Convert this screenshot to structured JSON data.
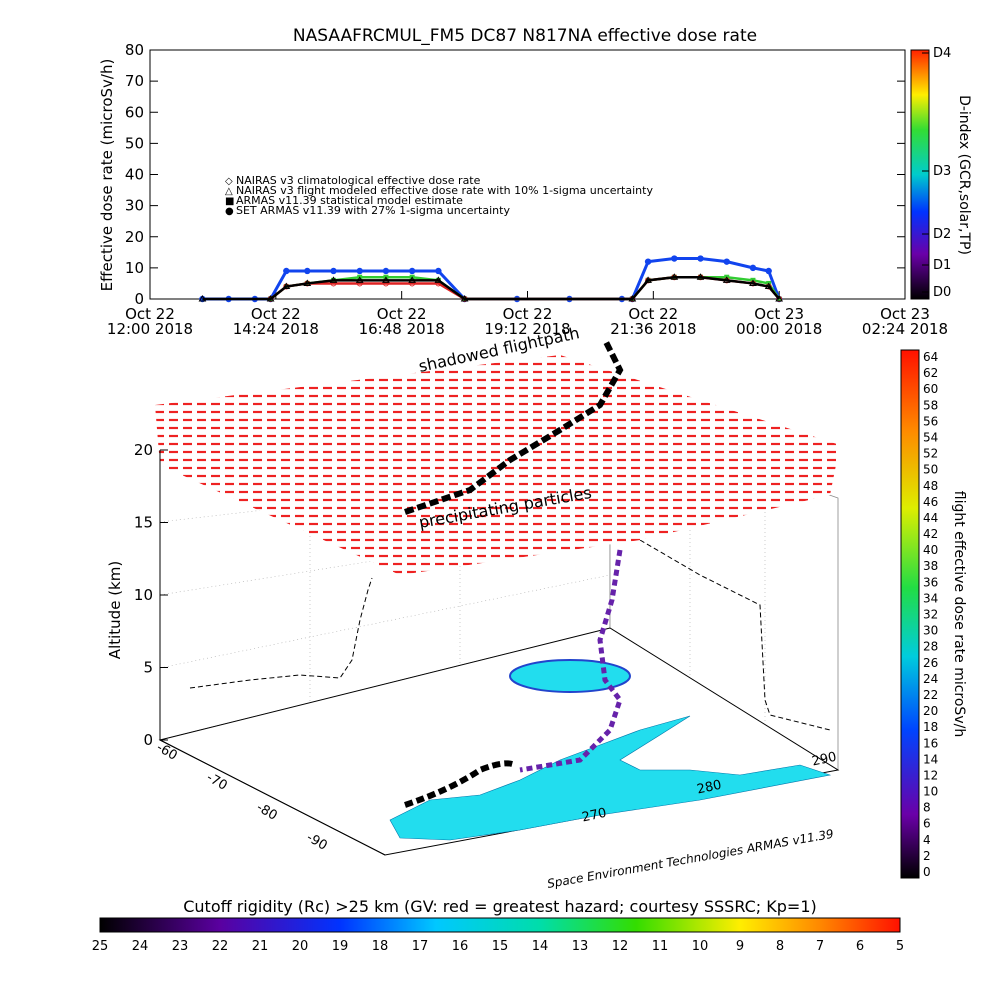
{
  "top_chart": {
    "title": "NASAAFRCMUL_FM5 DC87 N817NA effective dose rate",
    "ylabel": "Effective dose rate (microSv/h)",
    "yticks": [
      "0",
      "10",
      "20",
      "30",
      "40",
      "50",
      "60",
      "70",
      "80"
    ],
    "xticks": [
      {
        "l1": "Oct 22",
        "l2": "12:00 2018"
      },
      {
        "l1": "Oct 22",
        "l2": "14:24 2018"
      },
      {
        "l1": "Oct 22",
        "l2": "16:48 2018"
      },
      {
        "l1": "Oct 22",
        "l2": "19:12 2018"
      },
      {
        "l1": "Oct 22",
        "l2": "21:36 2018"
      },
      {
        "l1": "Oct 23",
        "l2": "00:00 2018"
      },
      {
        "l1": "Oct 23",
        "l2": "02:24 2018"
      }
    ],
    "legend": [
      {
        "symbol": "◇",
        "color": "#dd2222",
        "label": "NAIRAS v3 climatological effective dose rate"
      },
      {
        "symbol": "△",
        "color": "#000000",
        "label": "NAIRAS v3 flight modeled effective dose rate with 10% 1-sigma uncertainty"
      },
      {
        "symbol": "■",
        "color": "#33cc33",
        "label": "ARMAS v11.39 statistical model estimate"
      },
      {
        "symbol": "●",
        "color": "#1144ee",
        "label": "SET ARMAS v11.39 with 27% 1-sigma uncertainty"
      }
    ],
    "dindex": {
      "title": "D-index (GCR,solar,TP)",
      "labels": [
        "D4",
        "D3",
        "D2",
        "D1",
        "D0"
      ]
    }
  },
  "chart_data": [
    {
      "type": "line",
      "title": "NASAAFRCMUL_FM5 DC87 N817NA effective dose rate",
      "xlabel": "",
      "ylabel": "Effective dose rate (microSv/h)",
      "ylim": [
        0,
        80
      ],
      "x_unit": "hours since Oct 22 12:00 2018",
      "xlim": [
        0,
        14.4
      ],
      "series": [
        {
          "name": "SET ARMAS v11.39 with 27% 1-sigma uncertainty",
          "color": "#1144ee",
          "x": [
            1.0,
            1.5,
            2.0,
            2.3,
            2.6,
            3.0,
            3.5,
            4.0,
            4.5,
            5.0,
            5.5,
            6.0,
            7.0,
            8.0,
            9.0,
            9.2,
            9.5,
            10.0,
            10.5,
            11.0,
            11.5,
            11.8,
            12.0
          ],
          "y": [
            0,
            0,
            0,
            0,
            9,
            9,
            9,
            9,
            9,
            9,
            9,
            0,
            0,
            0,
            0,
            0,
            12,
            13,
            13,
            12,
            10,
            9,
            0
          ]
        },
        {
          "name": "ARMAS v11.39 statistical model estimate",
          "color": "#33cc33",
          "x": [
            2.3,
            2.6,
            3.0,
            3.5,
            4.0,
            4.5,
            5.0,
            5.5,
            6.0,
            9.2,
            9.5,
            10.0,
            10.5,
            11.0,
            11.5,
            11.8,
            12.0
          ],
          "y": [
            0,
            4,
            5,
            6,
            7,
            7,
            7,
            6,
            0,
            0,
            6,
            7,
            7,
            7,
            6,
            5,
            0
          ]
        },
        {
          "name": "NAIRAS v3 climatological effective dose rate",
          "color": "#dd2222",
          "x": [
            2.3,
            2.6,
            3.0,
            3.5,
            4.0,
            4.5,
            5.0,
            5.5,
            6.0,
            9.2,
            9.5,
            10.0,
            10.5,
            11.0,
            11.5,
            11.8,
            12.0
          ],
          "y": [
            0,
            4,
            5,
            5,
            5,
            5,
            5,
            5,
            0,
            0,
            6,
            7,
            7,
            6,
            5,
            4,
            0
          ]
        },
        {
          "name": "NAIRAS v3 flight modeled effective dose rate with 10% 1-sigma uncertainty",
          "color": "#000000",
          "x": [
            1.0,
            2.3,
            2.6,
            3.0,
            3.5,
            4.0,
            4.5,
            5.0,
            5.5,
            6.0,
            9.2,
            9.5,
            10.0,
            10.5,
            11.0,
            11.5,
            11.8,
            12.0
          ],
          "y": [
            0,
            0,
            4,
            5,
            6,
            6,
            6,
            6,
            6,
            0,
            0,
            6,
            7,
            7,
            6,
            5,
            4,
            0
          ]
        }
      ]
    },
    {
      "type": "scatter",
      "title": "",
      "ylabel": "Altitude (km)",
      "zticks": [
        "0",
        "5",
        "10",
        "15",
        "20"
      ],
      "lat_ticks": [
        "-90",
        "-80",
        "-70",
        "-60"
      ],
      "lon_ticks": [
        "260",
        "270",
        "280",
        "290"
      ],
      "annotations": [
        "shadowed flightpath",
        "precipitating particles"
      ],
      "layer_altitude_km": 20
    }
  ],
  "right_colorbar": {
    "title": "flight effective dose rate microSv/h",
    "labels": [
      "64",
      "62",
      "60",
      "58",
      "56",
      "54",
      "52",
      "50",
      "48",
      "46",
      "44",
      "42",
      "40",
      "38",
      "36",
      "34",
      "32",
      "30",
      "28",
      "26",
      "24",
      "22",
      "20",
      "18",
      "16",
      "14",
      "12",
      "10",
      "8",
      "6",
      "4",
      "2",
      "0"
    ]
  },
  "bottom_colorbar": {
    "title": "Cutoff rigidity (Rc) >25 km (GV: red = greatest hazard; courtesy SSSRC; Kp=1)",
    "labels": [
      "25",
      "24",
      "23",
      "22",
      "21",
      "20",
      "19",
      "18",
      "17",
      "16",
      "15",
      "14",
      "13",
      "12",
      "11",
      "10",
      "9",
      "8",
      "7",
      "6",
      "5"
    ]
  },
  "credit": "Space Environment Technologies ARMAS v11.39",
  "colors": {
    "dose": "#ff2222",
    "flight": "#000000",
    "ice": "#22ddee"
  }
}
